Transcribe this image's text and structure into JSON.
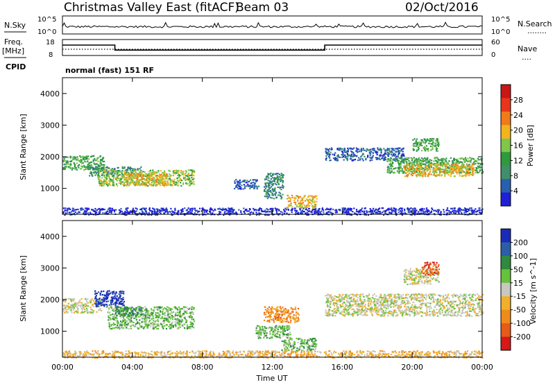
{
  "header": {
    "station": "Christmas Valley East (fitACF)",
    "beam": "Beam 03",
    "date": "02/Oct/2016"
  },
  "summary_panels": {
    "nsky_label": "N.Sky",
    "nsearch_label": "N.Search",
    "nsearch_dots": "........",
    "count_ticks": [
      "10^5",
      "10^0"
    ],
    "freq_label_line1": "Freq.",
    "freq_label_line2": "[MHz]",
    "freq_ticks": [
      "18",
      "8"
    ],
    "nave_label": "Nave",
    "nave_dots": "....",
    "nave_ticks": [
      "60",
      "0"
    ],
    "cpid_label": "CPID",
    "cpid_text": "normal (fast) 151 RF"
  },
  "colors": {
    "power_scale": [
      "#1f1fd6",
      "#2a5fb0",
      "#3f8f6b",
      "#2e9a3d",
      "#7fc64a",
      "#f2b41d",
      "#f27a1a",
      "#e8361a",
      "#c91717"
    ],
    "velocity_scale": [
      "#1a2bb8",
      "#2a5fa8",
      "#2e8a3e",
      "#66c23a",
      "#c8c8c0",
      "#f0b02a",
      "#f08a1a",
      "#e85a18",
      "#d61818"
    ]
  },
  "chart_data": {
    "type": "heatmap",
    "x_axis": {
      "label": "Time UT",
      "range": [
        "00:00",
        "24:00"
      ],
      "ticks": [
        "00:00",
        "04:00",
        "08:00",
        "12:00",
        "16:00",
        "20:00",
        "00:00"
      ],
      "tick_hours": [
        0,
        4,
        8,
        12,
        16,
        20,
        24
      ]
    },
    "y_axis": {
      "label": "Slant Range [km]",
      "range": [
        180,
        4500
      ],
      "ticks": [
        1000,
        2000,
        3000,
        4000
      ]
    },
    "frequency_trace": {
      "ylim": [
        8,
        18
      ],
      "hours": [
        0,
        3,
        3,
        15,
        15,
        24
      ],
      "mhz": [
        14.5,
        14.5,
        11.4,
        11.4,
        14.5,
        14.5
      ]
    },
    "panels": [
      {
        "name": "power",
        "colorbar_title": "Power [dB]",
        "colorbar_ticks": [
          4,
          8,
          12,
          16,
          20,
          24,
          28
        ],
        "regions": [
          {
            "t0": 0.0,
            "t1": 2.4,
            "r0": 1600,
            "r1": 2050,
            "c": 3
          },
          {
            "t0": 1.5,
            "t1": 4.5,
            "r0": 1400,
            "r1": 1700,
            "c": 2
          },
          {
            "t0": 2.0,
            "t1": 7.5,
            "r0": 1100,
            "r1": 1600,
            "c": 4
          },
          {
            "t0": 3.5,
            "t1": 6.0,
            "r0": 1100,
            "r1": 1500,
            "c": 5
          },
          {
            "t0": 9.8,
            "t1": 11.2,
            "r0": 1000,
            "r1": 1300,
            "c": 1
          },
          {
            "t0": 11.5,
            "t1": 12.6,
            "r0": 700,
            "r1": 1500,
            "c": 2
          },
          {
            "t0": 12.8,
            "t1": 14.5,
            "r0": 400,
            "r1": 800,
            "c": 5
          },
          {
            "t0": 15.0,
            "t1": 19.5,
            "r0": 1900,
            "r1": 2300,
            "c": 1
          },
          {
            "t0": 18.5,
            "t1": 24.0,
            "r0": 1500,
            "r1": 2000,
            "c": 3
          },
          {
            "t0": 19.5,
            "t1": 23.5,
            "r0": 1400,
            "r1": 1800,
            "c": 5
          },
          {
            "t0": 20.0,
            "t1": 21.5,
            "r0": 2200,
            "r1": 2600,
            "c": 3
          },
          {
            "t0": 0.0,
            "t1": 24.0,
            "r0": 180,
            "r1": 400,
            "c": 0
          }
        ]
      },
      {
        "name": "velocity",
        "colorbar_title": "Velocity [m s^-1]",
        "colorbar_ticks": [
          "200",
          "100",
          "50",
          "15",
          "-15",
          "-50",
          "-100",
          "-200"
        ],
        "regions": [
          {
            "t0": 0.0,
            "t1": 2.2,
            "r0": 1600,
            "r1": 2050,
            "c": 4
          },
          {
            "t0": 1.8,
            "t1": 3.5,
            "r0": 1800,
            "r1": 2300,
            "c": 0
          },
          {
            "t0": 2.5,
            "t1": 7.5,
            "r0": 1100,
            "r1": 1800,
            "c": 3
          },
          {
            "t0": 3.0,
            "t1": 4.5,
            "r0": 1500,
            "r1": 1800,
            "c": 2
          },
          {
            "t0": 11.5,
            "t1": 13.5,
            "r0": 1300,
            "r1": 1800,
            "c": 6
          },
          {
            "t0": 11.0,
            "t1": 13.0,
            "r0": 800,
            "r1": 1200,
            "c": 3
          },
          {
            "t0": 12.5,
            "t1": 14.5,
            "r0": 400,
            "r1": 800,
            "c": 3
          },
          {
            "t0": 15.0,
            "t1": 24.0,
            "r0": 1500,
            "r1": 2200,
            "c": 4
          },
          {
            "t0": 19.5,
            "t1": 21.5,
            "r0": 2500,
            "r1": 3000,
            "c": 4
          },
          {
            "t0": 20.5,
            "t1": 21.5,
            "r0": 2800,
            "r1": 3200,
            "c": 7
          },
          {
            "t0": 0.0,
            "t1": 24.0,
            "r0": 180,
            "r1": 400,
            "c": 5
          }
        ]
      }
    ]
  }
}
